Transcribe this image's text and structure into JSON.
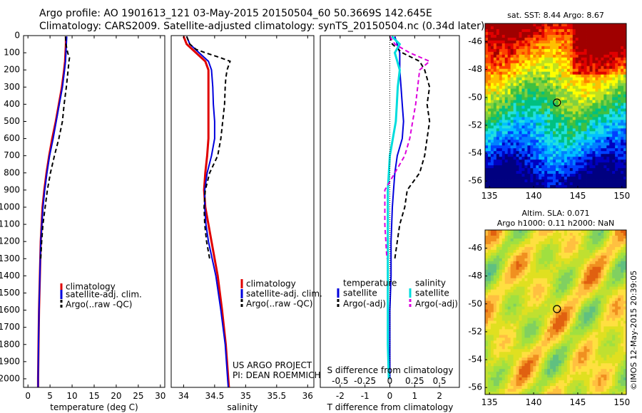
{
  "header": {
    "line1": "Argo profile: AO 1901613_121 03-May-2015 20150504_60 50.3669S 142.645E",
    "line2": "Climatology: CARS2009. Satellite-adjusted climatology: synTS_20150504.nc (0.34d later)"
  },
  "colors": {
    "climatology": "#e00000",
    "satellite_adj": "#0000dd",
    "argo": "#000000",
    "satellite_s": "#00dddd",
    "argo_s": "#dd00dd"
  },
  "chart_data": [
    {
      "type": "line",
      "xlabel": "temperature (deg C)",
      "ylabel": "",
      "xlim": [
        -1,
        31
      ],
      "ylim": [
        2050,
        0
      ],
      "xticks": [
        "0",
        "5",
        "10",
        "15",
        "20",
        "25",
        "30"
      ],
      "yticks": [
        "0",
        "100",
        "200",
        "300",
        "400",
        "500",
        "600",
        "700",
        "800",
        "900",
        "1000",
        "1100",
        "1200",
        "1300",
        "1400",
        "1500",
        "1600",
        "1700",
        "1800",
        "1900",
        "2000"
      ],
      "legend": [
        "climatology",
        "satellite-adj. clim.",
        "Argo(..raw -QC)"
      ],
      "legend_position": "lower-center",
      "series": [
        {
          "name": "climatology",
          "depth": [
            5,
            50,
            100,
            150,
            200,
            300,
            400,
            500,
            600,
            700,
            800,
            900,
            1000,
            1200,
            1400,
            1600,
            1800,
            2000,
            2050
          ],
          "values": [
            8.6,
            8.6,
            8.5,
            8.4,
            8.2,
            7.7,
            7.0,
            6.3,
            5.5,
            4.8,
            4.2,
            3.7,
            3.3,
            2.9,
            2.7,
            2.5,
            2.4,
            2.3,
            2.3
          ]
        },
        {
          "name": "satellite-adj. clim.",
          "depth": [
            5,
            50,
            100,
            150,
            200,
            300,
            400,
            500,
            600,
            700,
            800,
            900,
            1000,
            1200,
            1400,
            1600,
            1800,
            2000,
            2050
          ],
          "values": [
            8.8,
            8.7,
            8.6,
            8.5,
            8.3,
            7.8,
            7.1,
            6.4,
            5.7,
            4.9,
            4.3,
            3.8,
            3.4,
            2.9,
            2.7,
            2.5,
            2.4,
            2.3,
            2.3
          ]
        },
        {
          "name": "Argo(..raw -QC)",
          "depth": [
            5,
            50,
            100,
            130,
            150,
            200,
            300,
            400,
            500,
            600,
            700,
            800,
            900,
            1000,
            1100,
            1200,
            1300
          ],
          "values": [
            8.5,
            8.6,
            9.0,
            9.4,
            9.3,
            9.1,
            8.7,
            8.2,
            7.8,
            7.0,
            6.0,
            5.1,
            4.4,
            3.9,
            3.4,
            3.1,
            2.9
          ]
        }
      ]
    },
    {
      "type": "line",
      "xlabel": "salinity",
      "xlim": [
        33.8,
        36.1
      ],
      "ylim": [
        2050,
        0
      ],
      "xticks": [
        "34",
        "34.5",
        "35",
        "35.5",
        "36"
      ],
      "legend": [
        "climatology",
        "satellite-adj. clim.",
        "Argo(..raw -QC)"
      ],
      "legend_position": "lower-center",
      "annotations": [
        "US ARGO PROJECT",
        "PI: DEAN ROEMMICH"
      ],
      "series": [
        {
          "name": "climatology",
          "depth": [
            5,
            50,
            100,
            150,
            200,
            300,
            400,
            500,
            600,
            700,
            800,
            900,
            1000,
            1100,
            1200,
            1400,
            1600,
            1800,
            2000,
            2050
          ],
          "values": [
            34.0,
            34.05,
            34.2,
            34.35,
            34.4,
            34.4,
            34.4,
            34.4,
            34.4,
            34.38,
            34.35,
            34.33,
            34.35,
            34.4,
            34.45,
            34.55,
            34.62,
            34.68,
            34.72,
            34.73
          ]
        },
        {
          "name": "satellite-adj. clim.",
          "depth": [
            5,
            50,
            100,
            150,
            200,
            300,
            400,
            500,
            600,
            700,
            800,
            900,
            1000,
            1100,
            1200,
            1400,
            1600,
            1800,
            2000,
            2050
          ],
          "values": [
            34.05,
            34.1,
            34.25,
            34.4,
            34.45,
            34.47,
            34.48,
            34.5,
            34.5,
            34.45,
            34.38,
            34.34,
            34.34,
            34.36,
            34.4,
            34.52,
            34.6,
            34.67,
            34.71,
            34.72
          ]
        },
        {
          "name": "Argo(..raw -QC)",
          "depth": [
            5,
            50,
            80,
            100,
            130,
            150,
            200,
            250,
            300,
            400,
            500,
            600,
            700,
            800,
            900,
            1000,
            1100,
            1200,
            1300
          ],
          "values": [
            34.05,
            34.1,
            34.2,
            34.35,
            34.6,
            34.75,
            34.7,
            34.68,
            34.67,
            34.66,
            34.63,
            34.6,
            34.55,
            34.42,
            34.35,
            34.33,
            34.34,
            34.37,
            34.42
          ]
        }
      ]
    },
    {
      "type": "line",
      "xlabel": "T difference from climatology",
      "xlabel_top": "S difference from climatology",
      "xlim": [
        -2.8,
        2.8
      ],
      "ylim": [
        2050,
        0
      ],
      "xticks": [
        "-2",
        "-1",
        "0",
        "1",
        "2"
      ],
      "xticks_s": [
        "-0.5",
        "-0.25",
        "0",
        "0.25",
        "0.5"
      ],
      "legend_title_left": "temperature",
      "legend_title_right": "salinity",
      "legend": [
        "satellite",
        "Argo(-adj)",
        "satellite",
        "Argo(-adj)"
      ],
      "legend_position": "lower-center",
      "series": [
        {
          "name": "temperature satellite",
          "depth": [
            5,
            100,
            200,
            300,
            400,
            500,
            600,
            700,
            800,
            900,
            1000,
            1200,
            1400,
            1600,
            1800,
            2000
          ],
          "values": [
            0.2,
            0.4,
            0.4,
            0.45,
            0.5,
            0.55,
            0.5,
            0.3,
            0.2,
            0.15,
            0.1,
            0.05,
            0.05,
            0.0,
            0.0,
            0.0
          ]
        },
        {
          "name": "temperature Argo(-adj)",
          "depth": [
            5,
            50,
            100,
            150,
            200,
            300,
            400,
            500,
            600,
            700,
            800,
            900,
            1000,
            1100,
            1200,
            1300
          ],
          "values": [
            0.0,
            0.1,
            0.5,
            1.2,
            1.4,
            1.6,
            1.5,
            1.6,
            1.5,
            1.4,
            1.2,
            0.7,
            0.6,
            0.4,
            0.3,
            0.2
          ]
        },
        {
          "name": "salinity satellite",
          "depth": [
            5,
            50,
            100,
            200,
            300,
            400,
            500,
            600,
            700,
            800,
            900,
            1000,
            1200,
            1400,
            1600,
            1800,
            2000
          ],
          "values": [
            0.02,
            0.1,
            0.05,
            0.1,
            0.08,
            0.07,
            0.06,
            0.03,
            0.0,
            -0.01,
            -0.02,
            -0.02,
            -0.02,
            -0.02,
            -0.02,
            -0.02,
            -0.01
          ]
        },
        {
          "name": "salinity Argo(-adj)",
          "depth": [
            5,
            50,
            100,
            150,
            200,
            300,
            400,
            500,
            600,
            700,
            800,
            900,
            1000,
            1100,
            1200,
            1300
          ],
          "values": [
            0.0,
            0.05,
            0.2,
            0.4,
            0.3,
            0.28,
            0.26,
            0.23,
            0.2,
            0.15,
            0.05,
            -0.05,
            -0.05,
            -0.05,
            -0.04,
            -0.03
          ]
        }
      ]
    },
    {
      "type": "heatmap",
      "title": "sat. SST: 8.44  Argo: 8.67",
      "xticks": [
        "135",
        "140",
        "145",
        "150"
      ],
      "yticks": [
        "-46",
        "-48",
        "-50",
        "-52",
        "-54",
        "-56"
      ],
      "xlim": [
        134.5,
        150.5
      ],
      "ylim": [
        -56.5,
        -44.7
      ],
      "marker": {
        "lon": 142.645,
        "lat": -50.37
      }
    },
    {
      "type": "heatmap",
      "title": "Altim. SLA: 0.071",
      "subtitle": "Argo h1000: 0.11  h2000: NaN",
      "xticks": [
        "135",
        "140",
        "145",
        "150"
      ],
      "yticks": [
        "-46",
        "-48",
        "-50",
        "-52",
        "-54",
        "-56"
      ],
      "xlim": [
        134.5,
        150.5
      ],
      "ylim": [
        -56.5,
        -44.7
      ],
      "marker": {
        "lon": 142.645,
        "lat": -50.37
      }
    }
  ],
  "credit": "©IMOS 12-May-2015 20:39:05"
}
